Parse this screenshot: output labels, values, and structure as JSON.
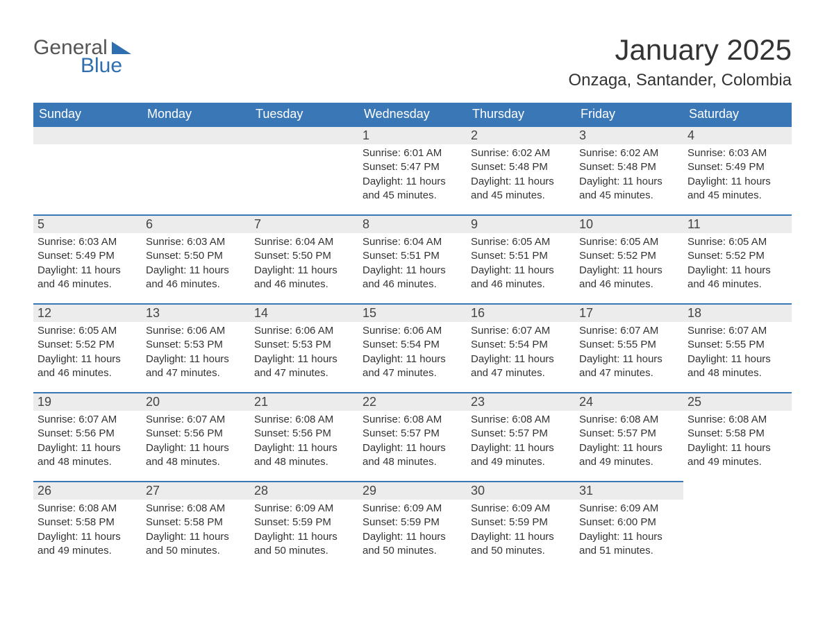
{
  "logo": {
    "line1": "General",
    "line2": "Blue"
  },
  "title": "January 2025",
  "location": "Onzaga, Santander, Colombia",
  "colors": {
    "header_bg": "#3a77b7",
    "header_text": "#ffffff",
    "daynum_bg": "#ececec",
    "row_border": "#3a77b7",
    "body_text": "#333333",
    "logo_gray": "#555555",
    "logo_blue": "#2f6fb0",
    "page_bg": "#ffffff"
  },
  "typography": {
    "title_fontsize": 42,
    "location_fontsize": 24,
    "weekday_fontsize": 18,
    "daynum_fontsize": 18,
    "body_fontsize": 15
  },
  "weekdays": [
    "Sunday",
    "Monday",
    "Tuesday",
    "Wednesday",
    "Thursday",
    "Friday",
    "Saturday"
  ],
  "weeks": [
    [
      {
        "n": "",
        "sunrise": "",
        "sunset": "",
        "daylight": ""
      },
      {
        "n": "",
        "sunrise": "",
        "sunset": "",
        "daylight": ""
      },
      {
        "n": "",
        "sunrise": "",
        "sunset": "",
        "daylight": ""
      },
      {
        "n": "1",
        "sunrise": "Sunrise: 6:01 AM",
        "sunset": "Sunset: 5:47 PM",
        "daylight": "Daylight: 11 hours and 45 minutes."
      },
      {
        "n": "2",
        "sunrise": "Sunrise: 6:02 AM",
        "sunset": "Sunset: 5:48 PM",
        "daylight": "Daylight: 11 hours and 45 minutes."
      },
      {
        "n": "3",
        "sunrise": "Sunrise: 6:02 AM",
        "sunset": "Sunset: 5:48 PM",
        "daylight": "Daylight: 11 hours and 45 minutes."
      },
      {
        "n": "4",
        "sunrise": "Sunrise: 6:03 AM",
        "sunset": "Sunset: 5:49 PM",
        "daylight": "Daylight: 11 hours and 45 minutes."
      }
    ],
    [
      {
        "n": "5",
        "sunrise": "Sunrise: 6:03 AM",
        "sunset": "Sunset: 5:49 PM",
        "daylight": "Daylight: 11 hours and 46 minutes."
      },
      {
        "n": "6",
        "sunrise": "Sunrise: 6:03 AM",
        "sunset": "Sunset: 5:50 PM",
        "daylight": "Daylight: 11 hours and 46 minutes."
      },
      {
        "n": "7",
        "sunrise": "Sunrise: 6:04 AM",
        "sunset": "Sunset: 5:50 PM",
        "daylight": "Daylight: 11 hours and 46 minutes."
      },
      {
        "n": "8",
        "sunrise": "Sunrise: 6:04 AM",
        "sunset": "Sunset: 5:51 PM",
        "daylight": "Daylight: 11 hours and 46 minutes."
      },
      {
        "n": "9",
        "sunrise": "Sunrise: 6:05 AM",
        "sunset": "Sunset: 5:51 PM",
        "daylight": "Daylight: 11 hours and 46 minutes."
      },
      {
        "n": "10",
        "sunrise": "Sunrise: 6:05 AM",
        "sunset": "Sunset: 5:52 PM",
        "daylight": "Daylight: 11 hours and 46 minutes."
      },
      {
        "n": "11",
        "sunrise": "Sunrise: 6:05 AM",
        "sunset": "Sunset: 5:52 PM",
        "daylight": "Daylight: 11 hours and 46 minutes."
      }
    ],
    [
      {
        "n": "12",
        "sunrise": "Sunrise: 6:05 AM",
        "sunset": "Sunset: 5:52 PM",
        "daylight": "Daylight: 11 hours and 46 minutes."
      },
      {
        "n": "13",
        "sunrise": "Sunrise: 6:06 AM",
        "sunset": "Sunset: 5:53 PM",
        "daylight": "Daylight: 11 hours and 47 minutes."
      },
      {
        "n": "14",
        "sunrise": "Sunrise: 6:06 AM",
        "sunset": "Sunset: 5:53 PM",
        "daylight": "Daylight: 11 hours and 47 minutes."
      },
      {
        "n": "15",
        "sunrise": "Sunrise: 6:06 AM",
        "sunset": "Sunset: 5:54 PM",
        "daylight": "Daylight: 11 hours and 47 minutes."
      },
      {
        "n": "16",
        "sunrise": "Sunrise: 6:07 AM",
        "sunset": "Sunset: 5:54 PM",
        "daylight": "Daylight: 11 hours and 47 minutes."
      },
      {
        "n": "17",
        "sunrise": "Sunrise: 6:07 AM",
        "sunset": "Sunset: 5:55 PM",
        "daylight": "Daylight: 11 hours and 47 minutes."
      },
      {
        "n": "18",
        "sunrise": "Sunrise: 6:07 AM",
        "sunset": "Sunset: 5:55 PM",
        "daylight": "Daylight: 11 hours and 48 minutes."
      }
    ],
    [
      {
        "n": "19",
        "sunrise": "Sunrise: 6:07 AM",
        "sunset": "Sunset: 5:56 PM",
        "daylight": "Daylight: 11 hours and 48 minutes."
      },
      {
        "n": "20",
        "sunrise": "Sunrise: 6:07 AM",
        "sunset": "Sunset: 5:56 PM",
        "daylight": "Daylight: 11 hours and 48 minutes."
      },
      {
        "n": "21",
        "sunrise": "Sunrise: 6:08 AM",
        "sunset": "Sunset: 5:56 PM",
        "daylight": "Daylight: 11 hours and 48 minutes."
      },
      {
        "n": "22",
        "sunrise": "Sunrise: 6:08 AM",
        "sunset": "Sunset: 5:57 PM",
        "daylight": "Daylight: 11 hours and 48 minutes."
      },
      {
        "n": "23",
        "sunrise": "Sunrise: 6:08 AM",
        "sunset": "Sunset: 5:57 PM",
        "daylight": "Daylight: 11 hours and 49 minutes."
      },
      {
        "n": "24",
        "sunrise": "Sunrise: 6:08 AM",
        "sunset": "Sunset: 5:57 PM",
        "daylight": "Daylight: 11 hours and 49 minutes."
      },
      {
        "n": "25",
        "sunrise": "Sunrise: 6:08 AM",
        "sunset": "Sunset: 5:58 PM",
        "daylight": "Daylight: 11 hours and 49 minutes."
      }
    ],
    [
      {
        "n": "26",
        "sunrise": "Sunrise: 6:08 AM",
        "sunset": "Sunset: 5:58 PM",
        "daylight": "Daylight: 11 hours and 49 minutes."
      },
      {
        "n": "27",
        "sunrise": "Sunrise: 6:08 AM",
        "sunset": "Sunset: 5:58 PM",
        "daylight": "Daylight: 11 hours and 50 minutes."
      },
      {
        "n": "28",
        "sunrise": "Sunrise: 6:09 AM",
        "sunset": "Sunset: 5:59 PM",
        "daylight": "Daylight: 11 hours and 50 minutes."
      },
      {
        "n": "29",
        "sunrise": "Sunrise: 6:09 AM",
        "sunset": "Sunset: 5:59 PM",
        "daylight": "Daylight: 11 hours and 50 minutes."
      },
      {
        "n": "30",
        "sunrise": "Sunrise: 6:09 AM",
        "sunset": "Sunset: 5:59 PM",
        "daylight": "Daylight: 11 hours and 50 minutes."
      },
      {
        "n": "31",
        "sunrise": "Sunrise: 6:09 AM",
        "sunset": "Sunset: 6:00 PM",
        "daylight": "Daylight: 11 hours and 51 minutes."
      },
      {
        "n": "",
        "sunrise": "",
        "sunset": "",
        "daylight": ""
      }
    ]
  ]
}
